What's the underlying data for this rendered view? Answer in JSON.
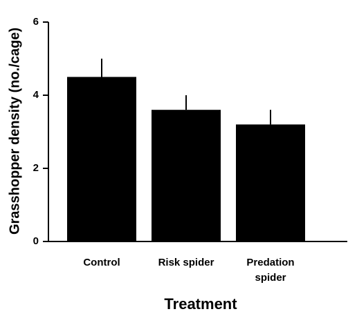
{
  "chart_data": {
    "type": "bar",
    "categories": [
      "Control",
      "Risk spider",
      "Predation spider"
    ],
    "values": [
      4.5,
      3.6,
      3.2
    ],
    "errors": [
      0.5,
      0.4,
      0.4
    ],
    "color": "#000000",
    "ylim": [
      0,
      6
    ],
    "yticks": [
      0,
      2,
      4,
      6
    ],
    "ylabel": "Grasshopper density (no./cage)",
    "xlabel": "Treatment"
  }
}
